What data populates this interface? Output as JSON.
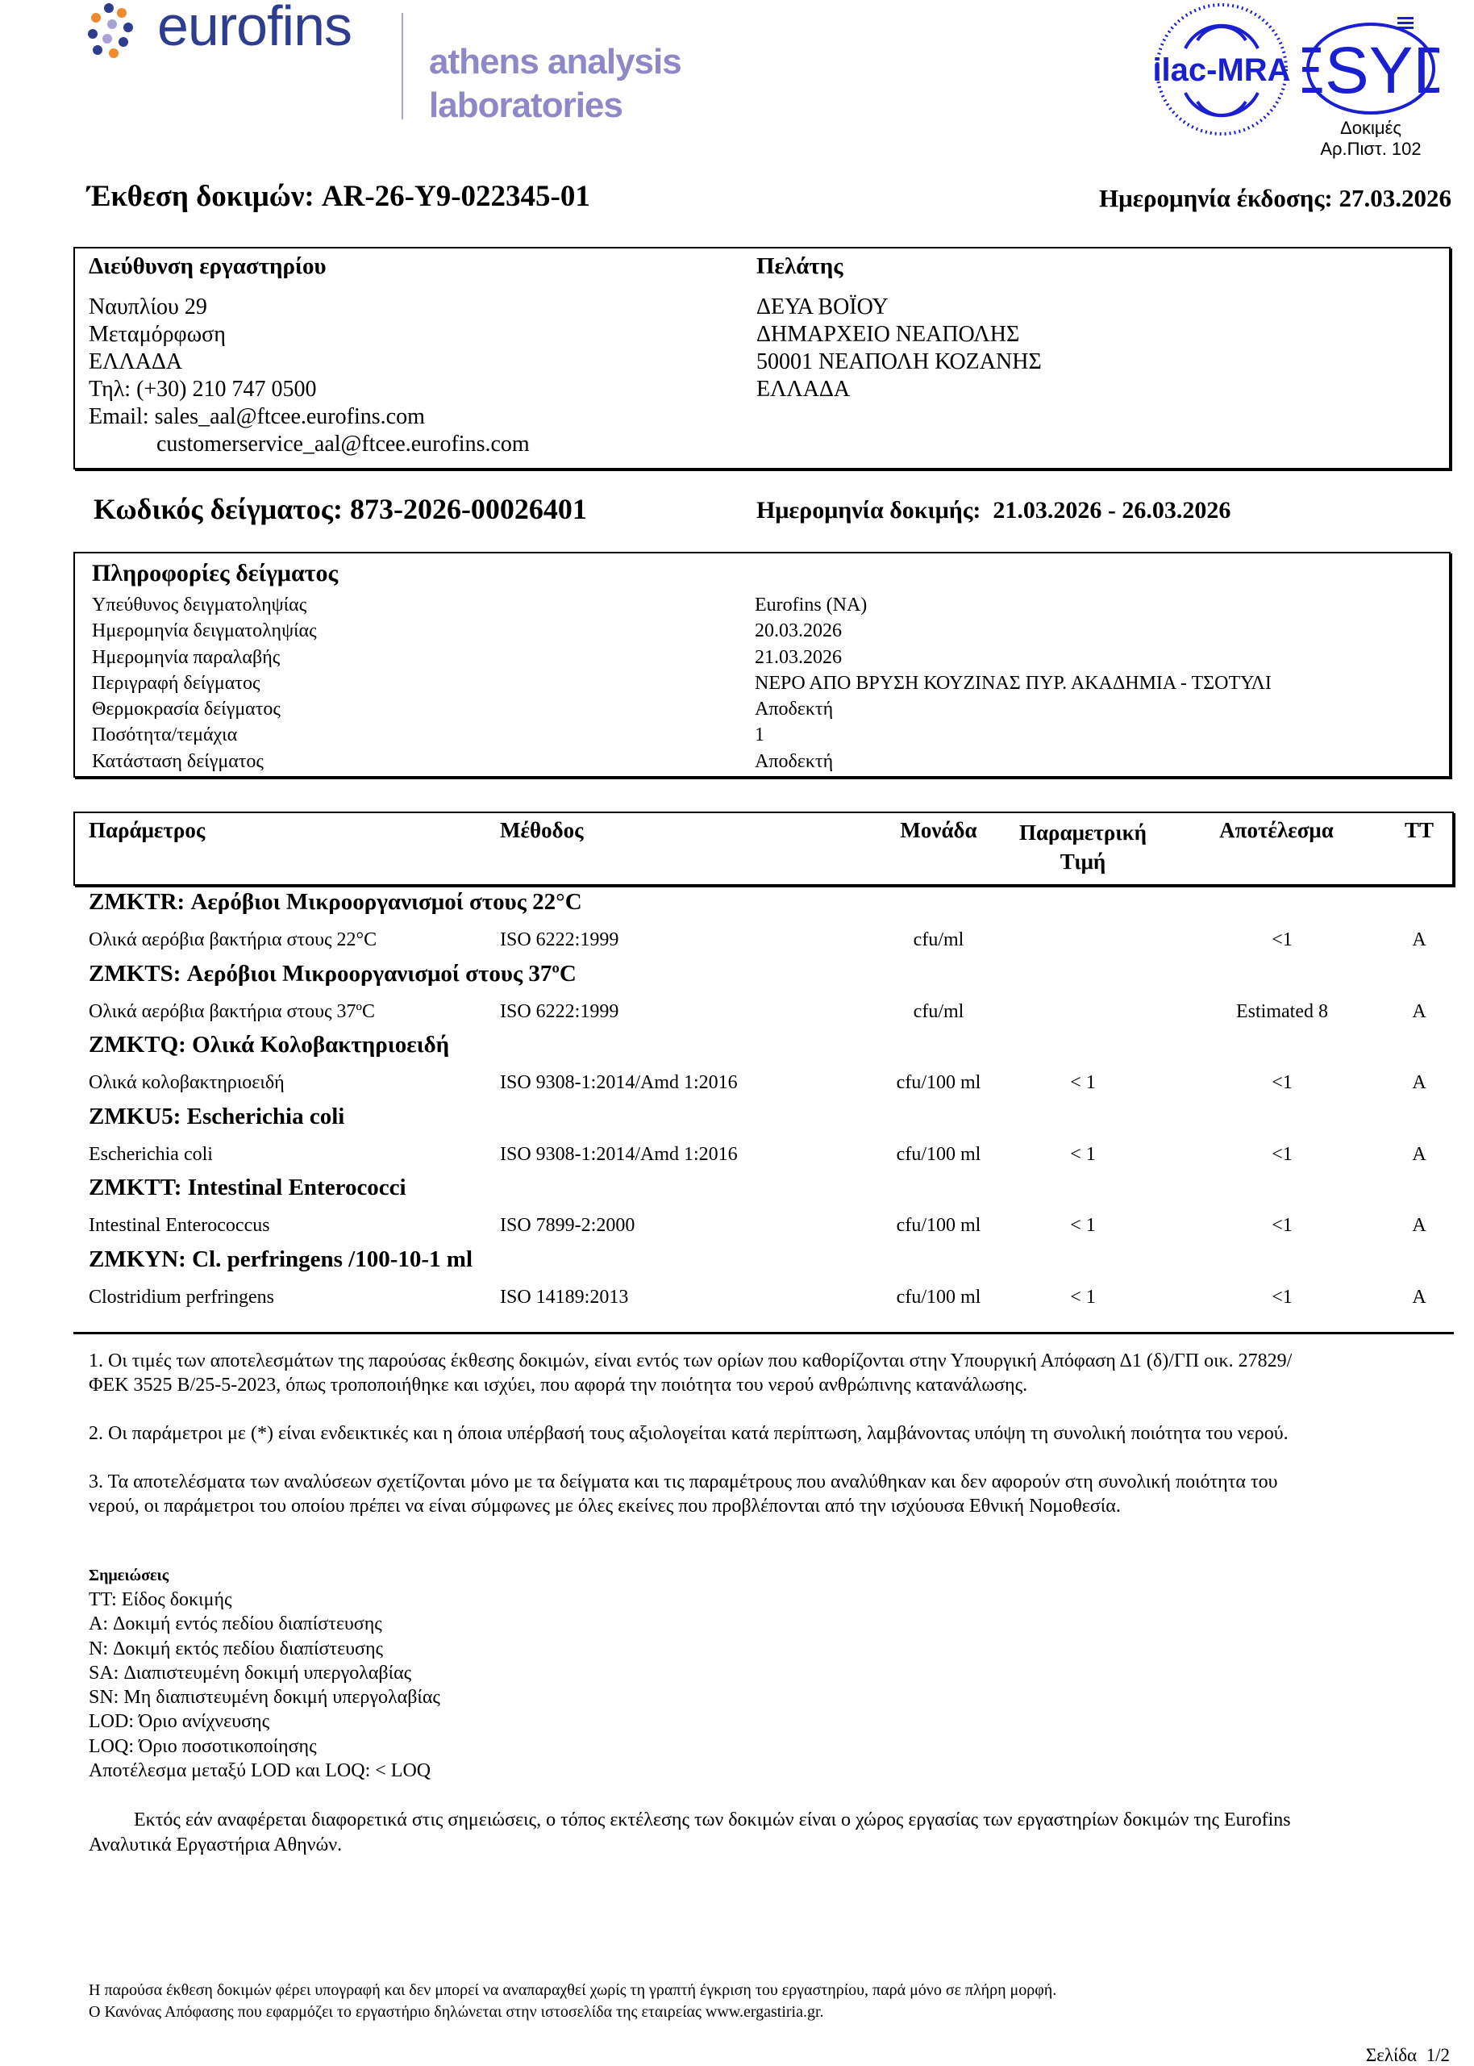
{
  "logo": {
    "brand": "eurofins",
    "sub1": "athens analysis",
    "sub2": "laboratories",
    "brand_color": "#2e3d8f",
    "sub_color": "#8c89c6",
    "dot_colors": [
      "#ef8a2e",
      "#2e3d8f",
      "#a6a4d4"
    ]
  },
  "accreditation": {
    "ilac": "ilac-MRA",
    "esyd": "ESYD",
    "line1": "Δοκιμές",
    "line2": "Αρ.Πιστ. 102",
    "color": "#1a1fd0"
  },
  "report": {
    "title": "Έκθεση δοκιμών: AR-26-Y9-022345-01",
    "issue_date": "Ημερομηνία έκδοσης: 27.03.2026"
  },
  "lab": {
    "heading": "Διεύθυνση εργαστηρίου",
    "lines": [
      "Ναυπλίου 29",
      "Μεταμόρφωση",
      "ΕΛΛΑΔΑ",
      "Τηλ: (+30) 210 747 0500",
      "Email: sales_aal@ftcee.eurofins.com",
      "customerservice_aal@ftcee.eurofins.com"
    ]
  },
  "client": {
    "heading": "Πελάτης",
    "lines": [
      "ΔΕΥΑ ΒΟΪΟΥ",
      "ΔΗΜΑΡΧΕΙΟ ΝΕΑΠΟΛΗΣ",
      "50001 ΝΕΑΠΟΛΗ ΚΟΖΑΝΗΣ",
      "ΕΛΛΑΔΑ"
    ]
  },
  "sample": {
    "code": "Κωδικός δείγματος: 873-2026-00026401",
    "test_date": "Ημερομηνία δοκιμής:  21.03.2026 - 26.03.2026"
  },
  "sample_info": {
    "heading": "Πληροφορίες δείγματος",
    "rows": [
      {
        "label": "Υπεύθυνος δειγματοληψίας",
        "value": "Eurofins (NA)"
      },
      {
        "label": "Ημερομηνία δειγματοληψίας",
        "value": "20.03.2026"
      },
      {
        "label": "Ημερομηνία παραλαβής",
        "value": "21.03.2026"
      },
      {
        "label": "Περιγραφή δείγματος",
        "value": "ΝΕΡΟ ΑΠΟ ΒΡΥΣΗ ΚΟΥΖΙΝΑΣ ΠΥΡ. ΑΚΑΔΗΜΙΑ - ΤΣΟΤΥΛΙ"
      },
      {
        "label": "Θερμοκρασία δείγματος",
        "value": "Αποδεκτή"
      },
      {
        "label": "Ποσότητα/τεμάχια",
        "value": "1"
      },
      {
        "label": "Κατάσταση δείγματος",
        "value": "Αποδεκτή"
      }
    ]
  },
  "results": {
    "headers": {
      "parameter": "Παράμετρος",
      "method": "Μέθοδος",
      "unit": "Μονάδα",
      "param_value_1": "Παραμετρική",
      "param_value_2": "Τιμή",
      "result": "Αποτέλεσμα",
      "tt": "TT"
    },
    "groups": [
      {
        "title": "ZMKTR: Αερόβιοι Μικροοργανισμοί στους 22°C",
        "row": {
          "parameter": "Ολικά αερόβια βακτήρια στους 22°C",
          "method": "ISO 6222:1999",
          "unit": "cfu/ml",
          "param_value": "",
          "result": "<1",
          "tt": "A"
        }
      },
      {
        "title": "ZMKTS: Αερόβιοι Μικροοργανισμοί στους 37ºC",
        "row": {
          "parameter": "Ολικά αερόβια βακτήρια στους 37ºC",
          "method": "ISO 6222:1999",
          "unit": "cfu/ml",
          "param_value": "",
          "result": "Estimated 8",
          "tt": "A"
        }
      },
      {
        "title": "ZMKTQ: Ολικά Κολοβακτηριοειδή",
        "row": {
          "parameter": "Ολικά κολοβακτηριοειδή",
          "method": "ISO 9308-1:2014/Amd 1:2016",
          "unit": "cfu/100 ml",
          "param_value": "< 1",
          "result": "<1",
          "tt": "A"
        }
      },
      {
        "title": "ZMKU5: Escherichia coli",
        "row": {
          "parameter": "Escherichia coli",
          "method": "ISO 9308-1:2014/Amd 1:2016",
          "unit": "cfu/100 ml",
          "param_value": "< 1",
          "result": "<1",
          "tt": "A"
        }
      },
      {
        "title": "ZMKTT: Intestinal Enterococci",
        "row": {
          "parameter": "Intestinal Enterococcus",
          "method": "ISO 7899-2:2000",
          "unit": "cfu/100 ml",
          "param_value": "< 1",
          "result": "<1",
          "tt": "A"
        }
      },
      {
        "title": "ZMKYN: Cl. perfringens /100-10-1 ml",
        "row": {
          "parameter": "Clostridium perfringens",
          "method": "ISO 14189:2013",
          "unit": "cfu/100 ml",
          "param_value": "< 1",
          "result": "<1",
          "tt": "A"
        }
      }
    ]
  },
  "notes_numbered": [
    [
      "1. Οι τιμές των αποτελεσμάτων της παρούσας έκθεσης δοκιμών, είναι εντός των ορίων που καθορίζονται στην Υπουργική Απόφαση Δ1 (δ)/ΓΠ οικ. 27829/",
      "ΦΕΚ 3525 Β/25-5-2023, όπως τροποποιήθηκε και ισχύει, που αφορά την ποιότητα του νερού ανθρώπινης κατανάλωσης."
    ],
    [
      "2. Οι παράμετροι με (*) είναι ενδεικτικές και η όποια υπέρβασή τους αξιολογείται κατά περίπτωση, λαμβάνοντας υπόψη τη συνολική ποιότητα του νερού."
    ],
    [
      "3. Τα αποτελέσματα των αναλύσεων σχετίζονται μόνο με τα δείγματα και τις παραμέτρους που αναλύθηκαν και δεν αφορούν στη συνολική ποιότητα του",
      "νερού, οι παράμετροι του οποίου πρέπει να είναι σύμφωνες με όλες εκείνες που προβλέπονται από την ισχύουσα Εθνική Νομοθεσία."
    ]
  ],
  "remarks": {
    "heading": "Σημειώσεις",
    "lines": [
      "TT: Είδος δοκιμής",
      "A: Δοκιμή εντός πεδίου διαπίστευσης",
      "N: Δοκιμή εκτός πεδίου διαπίστευσης",
      "SA: Διαπιστευμένη δοκιμή υπεργολαβίας",
      "SN: Μη διαπιστευμένη δοκιμή υπεργολαβίας",
      "LOD: Όριο ανίχνευσης",
      "LOQ: Όριο ποσοτικοποίησης",
      "Αποτέλεσμα μεταξύ LOD και LOQ: < LOQ"
    ]
  },
  "location_note": [
    "Εκτός εάν αναφέρεται διαφορετικά στις σημειώσεις, ο τόπος εκτέλεσης των δοκιμών είναι ο χώρος εργασίας των εργαστηρίων δοκιμών της Eurofins",
    "Αναλυτικά Εργαστήρια Αθηνών."
  ],
  "footer": {
    "line1": "Η παρούσα έκθεση δοκιμών φέρει υπογραφή και δεν μπορεί να αναπαραχθεί χωρίς τη γραπτή έγκριση του εργαστηρίου, παρά μόνο σε πλήρη μορφή.",
    "line2": "Ο Κανόνας Απόφασης που εφαρμόζει το εργαστήριο δηλώνεται στην ιστοσελίδα της εταιρείας www.ergastiria.gr.",
    "page_label": "Σελίδα",
    "page": "1/2"
  }
}
